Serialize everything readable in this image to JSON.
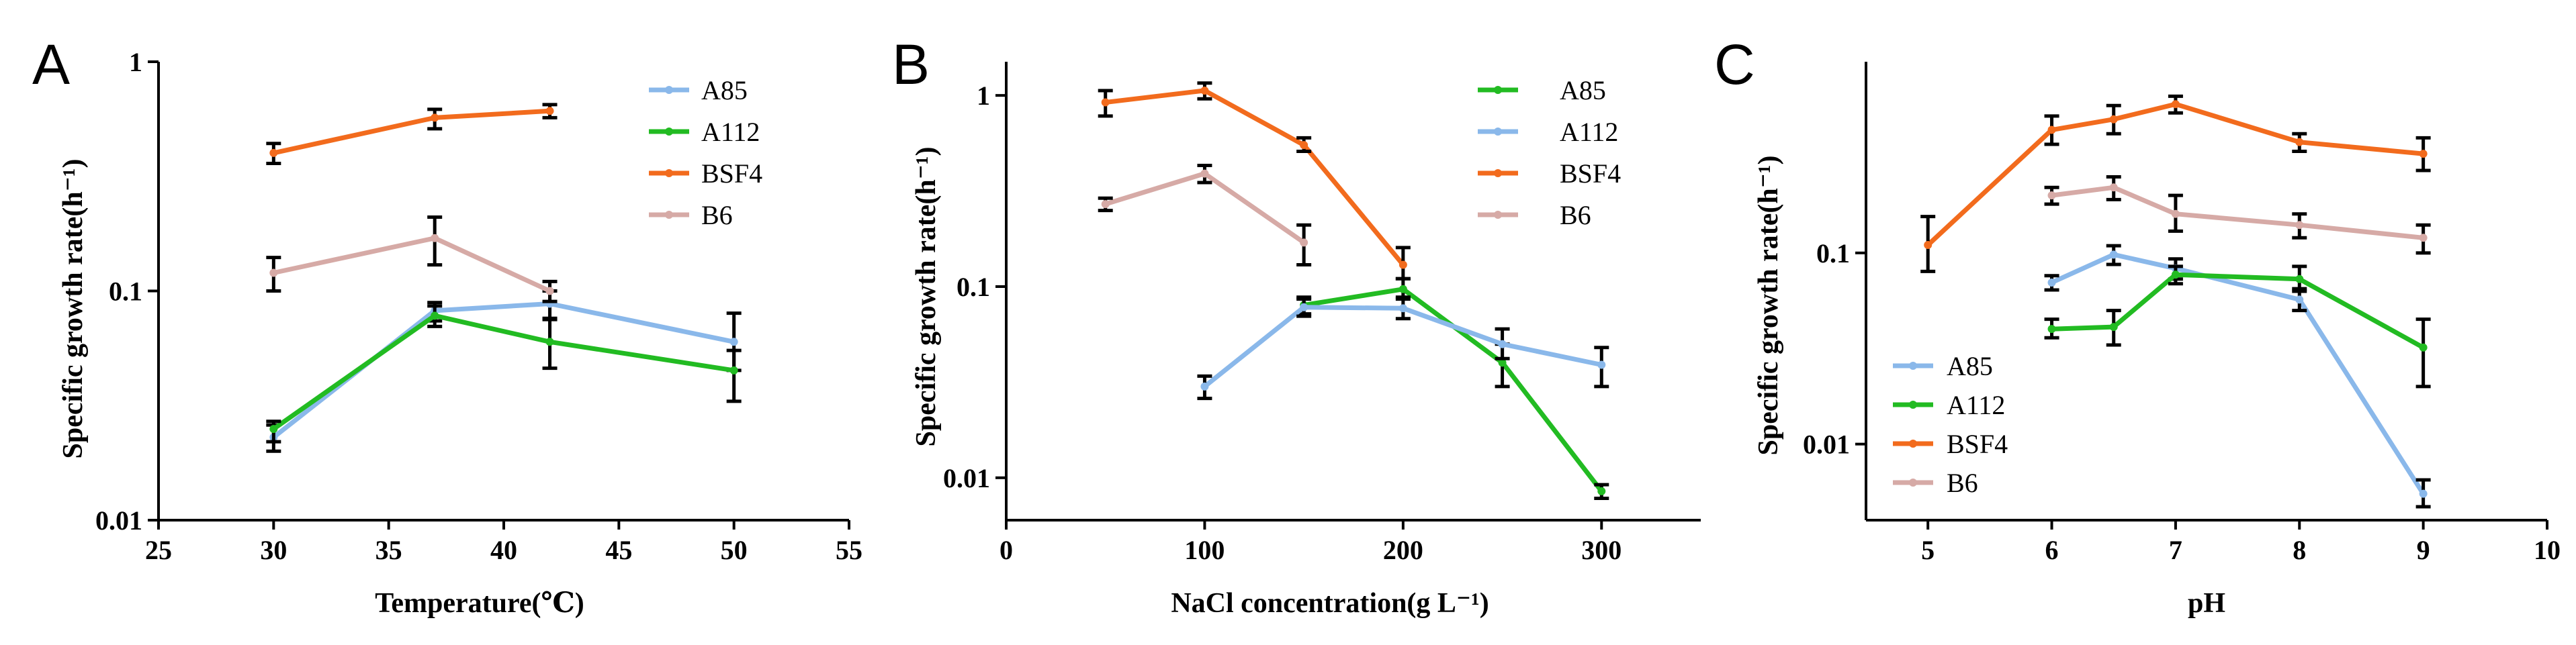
{
  "colors": {
    "A85": "#8ab8ea",
    "A112": "#22bb22",
    "BSF4": "#f26b1d",
    "B6": "#d6aaa6",
    "axis": "#000000"
  },
  "chart_data": [
    {
      "panel": "A",
      "type": "line",
      "xlabel": "Temperature(℃)",
      "ylabel": "Specific growth rate(h⁻¹)",
      "xlim": [
        25,
        55
      ],
      "ylim": [
        0.01,
        1
      ],
      "yscale": "log",
      "xticks": [
        25,
        30,
        35,
        40,
        45,
        50,
        55
      ],
      "xtick_labels": [
        "25",
        "30",
        "35",
        "40",
        "45",
        "50",
        "55"
      ],
      "yticks": [
        0.01,
        0.1,
        1
      ],
      "ytick_labels": [
        "0.01",
        "0.1",
        "1"
      ],
      "legend": [
        "A85",
        "A112",
        "BSF4",
        "B6"
      ],
      "legend_position": "top-right",
      "series": [
        {
          "name": "A85",
          "color_key": "A85",
          "x": [
            30,
            37,
            42,
            50
          ],
          "values": [
            0.023,
            0.082,
            0.088,
            0.06
          ],
          "err_low": [
            0.02,
            0.074,
            0.075,
            0.045
          ],
          "err_high": [
            0.026,
            0.089,
            0.1,
            0.08
          ]
        },
        {
          "name": "A112",
          "color_key": "A112",
          "x": [
            30,
            37,
            42,
            50
          ],
          "values": [
            0.025,
            0.078,
            0.06,
            0.045
          ],
          "err_low": [
            0.022,
            0.07,
            0.046,
            0.033
          ],
          "err_high": [
            0.027,
            0.086,
            0.076,
            0.055
          ]
        },
        {
          "name": "BSF4",
          "color_key": "BSF4",
          "x": [
            30,
            37,
            42
          ],
          "values": [
            0.4,
            0.57,
            0.61
          ],
          "err_low": [
            0.36,
            0.51,
            0.57
          ],
          "err_high": [
            0.44,
            0.62,
            0.65
          ]
        },
        {
          "name": "B6",
          "color_key": "B6",
          "x": [
            30,
            37,
            42
          ],
          "values": [
            0.12,
            0.17,
            0.1
          ],
          "err_low": [
            0.1,
            0.13,
            0.09
          ],
          "err_high": [
            0.14,
            0.21,
            0.11
          ]
        }
      ]
    },
    {
      "panel": "B",
      "type": "line",
      "xlabel": "NaCl  concentration(g L⁻¹)",
      "ylabel": "Specific growth rate(h⁻¹)",
      "xlim": [
        0,
        350
      ],
      "ylim": [
        0.006,
        1.5
      ],
      "yscale": "log",
      "xticks": [
        0,
        100,
        200,
        300
      ],
      "xtick_labels": [
        "0",
        "100",
        "200",
        "300"
      ],
      "yticks": [
        0.01,
        0.1,
        1
      ],
      "ytick_labels": [
        "0.01",
        "0.1",
        "1"
      ],
      "legend": [
        "A85",
        "A112",
        "BSF4",
        "B6"
      ],
      "legend_position": "top-right",
      "series": [
        {
          "name": "A85",
          "color_key": "A112",
          "x": [
            150,
            200,
            250,
            300
          ],
          "values": [
            0.08,
            0.097,
            0.04,
            0.0085
          ],
          "err_low": [
            0.072,
            0.088,
            0.03,
            0.0078
          ],
          "err_high": [
            0.088,
            0.11,
            0.05,
            0.0092
          ]
        },
        {
          "name": "A112",
          "color_key": "A85",
          "x": [
            100,
            150,
            200,
            250,
            300
          ],
          "values": [
            0.03,
            0.078,
            0.077,
            0.05,
            0.039
          ],
          "err_low": [
            0.026,
            0.07,
            0.068,
            0.042,
            0.03
          ],
          "err_high": [
            0.034,
            0.086,
            0.086,
            0.06,
            0.048
          ]
        },
        {
          "name": "BSF4",
          "color_key": "BSF4",
          "x": [
            50,
            100,
            150,
            200
          ],
          "values": [
            0.92,
            1.06,
            0.55,
            0.13
          ],
          "err_low": [
            0.78,
            0.96,
            0.51,
            0.11
          ],
          "err_high": [
            1.06,
            1.16,
            0.6,
            0.16
          ]
        },
        {
          "name": "B6",
          "color_key": "B6",
          "x": [
            50,
            100,
            150
          ],
          "values": [
            0.27,
            0.39,
            0.17
          ],
          "err_low": [
            0.25,
            0.35,
            0.13
          ],
          "err_high": [
            0.29,
            0.43,
            0.21
          ]
        }
      ]
    },
    {
      "panel": "C",
      "type": "line",
      "xlabel": "pH",
      "ylabel": "Specific growth rate(h⁻¹)",
      "xlim": [
        4.5,
        10
      ],
      "ylim": [
        0.004,
        1
      ],
      "yscale": "log",
      "xticks": [
        5,
        6,
        7,
        8,
        9,
        10
      ],
      "xtick_labels": [
        "5",
        "6",
        "7",
        "8",
        "9",
        "10"
      ],
      "yticks": [
        0.01,
        0.1
      ],
      "ytick_labels": [
        "0.01",
        "0.1"
      ],
      "legend": [
        "A85",
        "A112",
        "BSF4",
        "B6"
      ],
      "legend_position": "bottom-left",
      "series": [
        {
          "name": "A85",
          "color_key": "A85",
          "x": [
            6,
            6.5,
            7,
            8,
            9
          ],
          "values": [
            0.07,
            0.098,
            0.083,
            0.057,
            0.0055
          ],
          "err_low": [
            0.064,
            0.087,
            0.073,
            0.05,
            0.0047
          ],
          "err_high": [
            0.076,
            0.109,
            0.093,
            0.065,
            0.0065
          ]
        },
        {
          "name": "A112",
          "color_key": "A112",
          "x": [
            6,
            6.5,
            7,
            8,
            9
          ],
          "values": [
            0.04,
            0.041,
            0.077,
            0.073,
            0.032
          ],
          "err_low": [
            0.036,
            0.033,
            0.069,
            0.063,
            0.02
          ],
          "err_high": [
            0.045,
            0.05,
            0.085,
            0.085,
            0.045
          ]
        },
        {
          "name": "BSF4",
          "color_key": "BSF4",
          "x": [
            5,
            6,
            6.5,
            7,
            8,
            9
          ],
          "values": [
            0.11,
            0.44,
            0.5,
            0.6,
            0.38,
            0.33
          ],
          "err_low": [
            0.08,
            0.37,
            0.42,
            0.54,
            0.34,
            0.27
          ],
          "err_high": [
            0.155,
            0.52,
            0.59,
            0.66,
            0.42,
            0.4
          ]
        },
        {
          "name": "B6",
          "color_key": "B6",
          "x": [
            6,
            6.5,
            7,
            8,
            9
          ],
          "values": [
            0.2,
            0.22,
            0.16,
            0.14,
            0.12
          ],
          "err_low": [
            0.18,
            0.19,
            0.13,
            0.12,
            0.1
          ],
          "err_high": [
            0.22,
            0.25,
            0.2,
            0.16,
            0.14
          ]
        }
      ]
    }
  ]
}
